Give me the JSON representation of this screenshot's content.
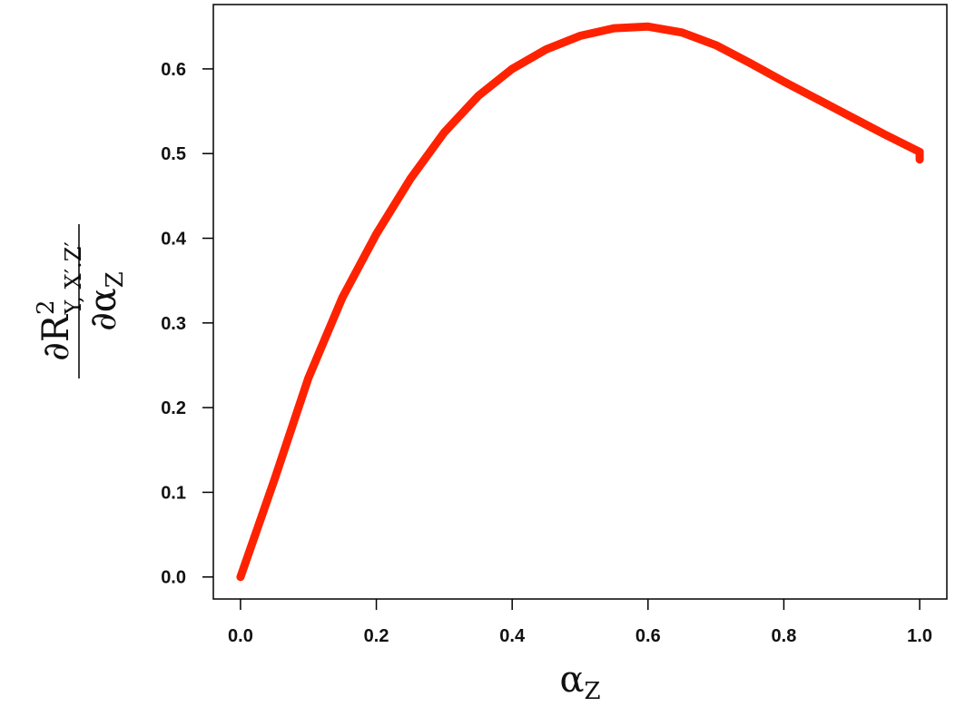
{
  "chart_data": {
    "type": "line",
    "xlabel": {
      "text": "α",
      "sub": "Z"
    },
    "ylabel": {
      "numerator": "∂R",
      "numerator_sup": "2",
      "numerator_sub": "Y, X′.Z′",
      "denominator": "∂α",
      "denominator_sub": "Z"
    },
    "x": [
      0,
      0.05,
      0.1,
      0.15,
      0.2,
      0.25,
      0.3,
      0.35,
      0.4,
      0.45,
      0.5,
      0.55,
      0.6,
      0.65,
      0.7,
      0.75,
      0.8,
      0.85,
      0.9,
      0.95,
      1.0,
      1.0
    ],
    "series": [
      {
        "color": "#ff2200",
        "values": [
          0,
          0.115,
          0.235,
          0.33,
          0.405,
          0.47,
          0.525,
          0.568,
          0.6,
          0.623,
          0.639,
          0.648,
          0.65,
          0.643,
          0.628,
          0.607,
          0.585,
          0.564,
          0.543,
          0.522,
          0.502,
          0.493
        ]
      }
    ],
    "xlim": [
      -0.04,
      1.04
    ],
    "ylim": [
      -0.026,
      0.676
    ],
    "xticks": [
      {
        "value": 0,
        "label": "0.0"
      },
      0.2,
      0.4,
      0.6,
      0.8,
      {
        "value": 1,
        "label": "1.0"
      }
    ],
    "yticks": [
      {
        "value": 0,
        "label": "0.0"
      },
      0.1,
      0.2,
      0.3,
      0.4,
      0.5,
      0.6
    ]
  }
}
